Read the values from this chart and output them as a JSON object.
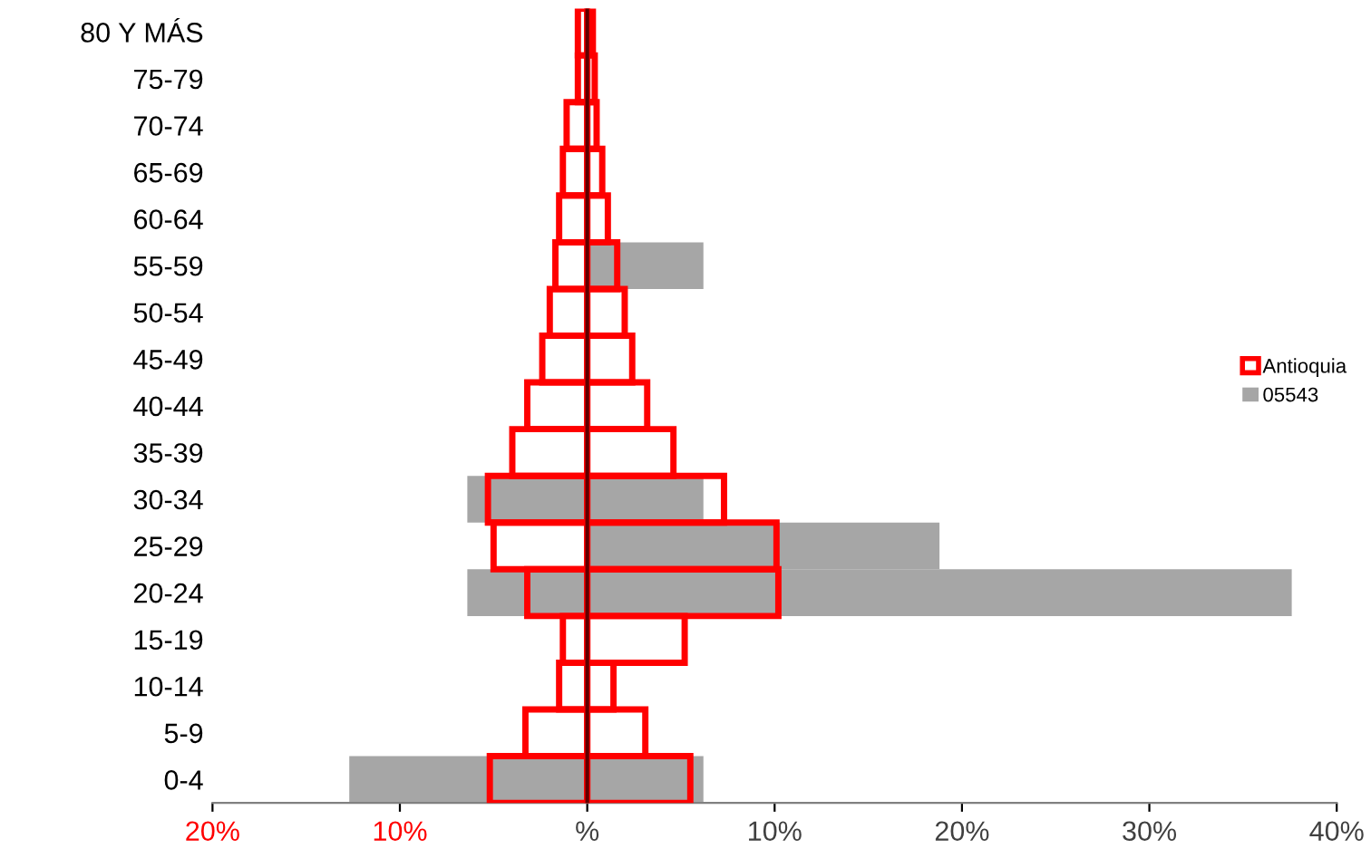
{
  "chart_data": {
    "type": "bar",
    "orientation": "horizontal",
    "legend": "right",
    "categories": [
      "80 Y MÁS",
      "75-79",
      "70-74",
      "65-69",
      "60-64",
      "55-59",
      "50-54",
      "45-49",
      "40-44",
      "35-39",
      "30-34",
      "25-29",
      "20-24",
      "15-19",
      "10-14",
      "5-9",
      "0-4"
    ],
    "series": [
      {
        "name": "05543",
        "color": "#a6a6a6",
        "values": [
          0,
          0,
          0,
          0,
          0,
          0,
          0,
          0,
          0,
          0,
          -6.4,
          0,
          -6.4,
          0,
          0,
          0,
          -12.7
        ]
      },
      {
        "color": "#a6a6a6",
        "values": [
          0,
          0,
          0,
          0,
          0,
          6.2,
          0,
          0,
          0,
          0,
          6.2,
          18.8,
          37.6,
          0,
          0,
          0,
          6.2
        ]
      },
      {
        "name": "Antioquia",
        "color": "#ff0000",
        "values": [
          -0.5,
          -0.5,
          -1.1,
          -1.3,
          -1.5,
          -1.7,
          -2.0,
          -2.4,
          -3.2,
          -4.0,
          -5.3,
          -5.0,
          -3.2,
          -1.3,
          -1.5,
          -3.3,
          -5.2
        ]
      },
      {
        "color": "#ff0000",
        "values": [
          0.3,
          0.4,
          0.5,
          0.8,
          1.1,
          1.6,
          2.0,
          2.4,
          3.2,
          4.6,
          7.3,
          10.1,
          10.2,
          5.2,
          1.4,
          3.1,
          5.5
        ]
      }
    ],
    "xlim": [
      -20,
      40
    ],
    "xticks": [
      {
        "value": -20,
        "label": "20%"
      },
      {
        "value": -10,
        "label": "10%"
      },
      {
        "value": 0,
        "label": "%"
      },
      {
        "value": 10,
        "label": "10%"
      },
      {
        "value": 20,
        "label": "20%"
      },
      {
        "value": 30,
        "label": "30%"
      },
      {
        "value": 40,
        "label": "40%"
      }
    ]
  }
}
